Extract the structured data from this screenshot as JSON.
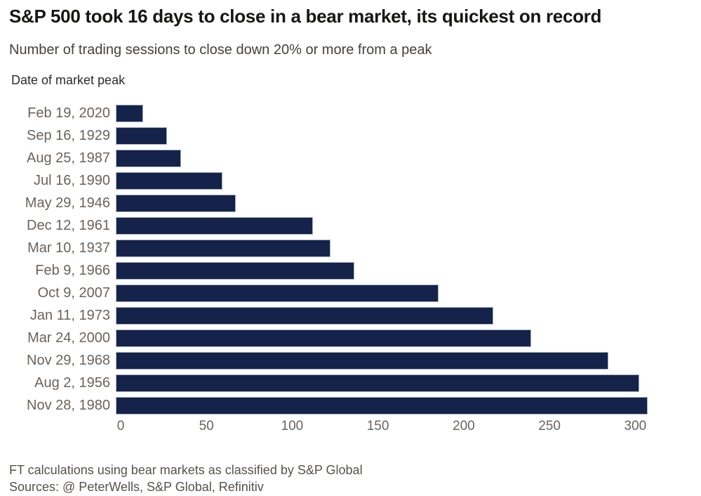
{
  "title": "S&P 500 took 16 days to close in a bear market, its quickest on record",
  "subtitle": "Number of trading sessions to close down 20% or more from a peak",
  "axis_label": "Date of market peak",
  "footnote": "FT calculations using bear markets as classified by S&P Global",
  "sources": "Sources: @ PeterWells, S&P Global, Refinitiv",
  "colors": {
    "bar_fill": "#15234a",
    "bar_edge": "#a6b3c8",
    "background": "#ffffff",
    "title_text": "#181613",
    "label_text": "#6b635c"
  },
  "chart_data": {
    "type": "bar",
    "orientation": "horizontal",
    "title": "S&P 500 took 16 days to close in a bear market, its quickest on record",
    "subtitle": "Number of trading sessions to close down 20% or more from a peak",
    "ylabel": "Date of market peak",
    "xlabel": "",
    "categories": [
      "Feb 19, 2020",
      "Sep 16, 1929",
      "Aug 25, 1987",
      "Jul 16, 1990",
      "May 29, 1946",
      "Dec 12, 1961",
      "Mar 10, 1937",
      "Feb 9, 1966",
      "Oct 9, 2007",
      "Jan 11, 1973",
      "Mar 24, 2000",
      "Nov 29, 1968",
      "Aug 2, 1956",
      "Nov 28, 1980"
    ],
    "values": [
      16,
      30,
      38,
      62,
      70,
      115,
      125,
      139,
      188,
      220,
      242,
      287,
      305,
      310
    ],
    "xlim": [
      0,
      315
    ],
    "xticks": [
      0,
      50,
      100,
      150,
      200,
      250,
      300
    ],
    "grid": false,
    "legend": null,
    "bar_color": "#15234a"
  }
}
